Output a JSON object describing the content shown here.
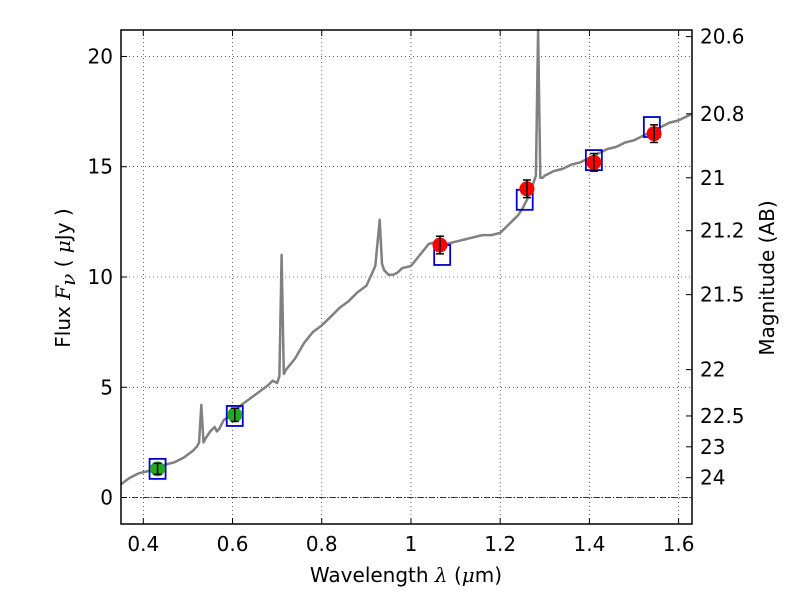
{
  "chart_data": {
    "type": "line",
    "xlabel": "Wavelength  λ (μm)",
    "xlabel_parts": {
      "main": "Wavelength  ",
      "lambda": "λ",
      "unit_open": " (",
      "mu": "μ",
      "unit_close": "m)"
    },
    "ylabel": "Flux  Fν  ( μJy )",
    "ylabel_parts": {
      "main": "Flux  ",
      "F": "F",
      "nu": "ν",
      "unit_open": "  ( ",
      "mu": "μ",
      "unit_close": "Jy )"
    },
    "y2label": "Magnitude (AB)",
    "xlim": [
      0.35,
      1.63
    ],
    "ylim": [
      -1.2,
      21.2
    ],
    "grid": true,
    "xticks": [
      0.4,
      0.6,
      0.8,
      1.0,
      1.2,
      1.4,
      1.6
    ],
    "xtick_labels": [
      "0.4",
      "0.6",
      "0.8",
      "1",
      "1.2",
      "1.4",
      "1.6"
    ],
    "yticks": [
      0,
      5,
      10,
      15,
      20
    ],
    "ytick_labels": [
      "0",
      "5",
      "10",
      "15",
      "20"
    ],
    "y2ticks": [
      {
        "label": "20.6",
        "flux": 20.9
      },
      {
        "label": "20.8",
        "flux": 17.4
      },
      {
        "label": "21",
        "flux": 14.5
      },
      {
        "label": "21.2",
        "flux": 12.1
      },
      {
        "label": "21.5",
        "flux": 9.2
      },
      {
        "label": "22",
        "flux": 5.8
      },
      {
        "label": "22.5",
        "flux": 3.7
      },
      {
        "label": "23",
        "flux": 2.3
      },
      {
        "label": "24",
        "flux": 0.9
      }
    ],
    "zero_line": 0,
    "series": [
      {
        "type": "line",
        "color": "#808080",
        "x": [
          0.35,
          0.37,
          0.39,
          0.41,
          0.43,
          0.45,
          0.47,
          0.49,
          0.51,
          0.52,
          0.525,
          0.53,
          0.535,
          0.54,
          0.55,
          0.56,
          0.565,
          0.57,
          0.58,
          0.6,
          0.62,
          0.64,
          0.66,
          0.68,
          0.69,
          0.7,
          0.705,
          0.71,
          0.715,
          0.72,
          0.74,
          0.76,
          0.78,
          0.8,
          0.82,
          0.84,
          0.86,
          0.88,
          0.9,
          0.92,
          0.93,
          0.935,
          0.94,
          0.95,
          0.96,
          0.97,
          0.98,
          1.0,
          1.02,
          1.04,
          1.06,
          1.08,
          1.1,
          1.12,
          1.14,
          1.16,
          1.18,
          1.2,
          1.22,
          1.24,
          1.25,
          1.26,
          1.27,
          1.28,
          1.285,
          1.29,
          1.295,
          1.3,
          1.32,
          1.34,
          1.36,
          1.38,
          1.4,
          1.42,
          1.44,
          1.46,
          1.48,
          1.5,
          1.52,
          1.54,
          1.56,
          1.58,
          1.6,
          1.62,
          1.63
        ],
        "y": [
          0.6,
          0.9,
          1.1,
          1.2,
          1.3,
          1.5,
          1.6,
          1.8,
          2.1,
          2.3,
          2.5,
          4.2,
          2.5,
          2.7,
          3.0,
          3.2,
          3.0,
          3.1,
          3.5,
          3.8,
          4.2,
          4.5,
          4.8,
          5.1,
          5.3,
          5.2,
          5.5,
          11.0,
          5.6,
          5.8,
          6.3,
          7.0,
          7.5,
          7.8,
          8.2,
          8.6,
          8.9,
          9.3,
          9.6,
          10.5,
          12.6,
          10.6,
          10.3,
          10.1,
          10.1,
          10.2,
          10.4,
          10.5,
          11.0,
          11.5,
          11.6,
          11.5,
          11.6,
          11.7,
          11.8,
          11.9,
          11.9,
          12.0,
          12.4,
          12.8,
          13.1,
          13.5,
          14.0,
          14.6,
          21.2,
          14.5,
          14.5,
          14.6,
          14.8,
          14.9,
          15.1,
          15.2,
          15.4,
          15.6,
          15.8,
          15.9,
          16.1,
          16.2,
          16.4,
          16.6,
          16.8,
          17.0,
          17.1,
          17.3,
          17.4
        ]
      },
      {
        "type": "scatter",
        "marker": "circle",
        "color": "#ff0000",
        "x": [
          1.065,
          1.26,
          1.41,
          1.545
        ],
        "y": [
          11.45,
          14.0,
          15.2,
          16.5
        ],
        "yerr": [
          0.4,
          0.4,
          0.4,
          0.4
        ]
      },
      {
        "type": "scatter",
        "marker": "circle",
        "color": "#22aa22",
        "x": [
          0.432,
          0.605
        ],
        "y": [
          1.3,
          3.75
        ],
        "yerr": [
          0.25,
          0.3
        ]
      },
      {
        "type": "scatter",
        "marker": "square-open",
        "color": "#0000cc",
        "x": [
          0.432,
          0.605,
          1.07,
          1.255,
          1.41,
          1.54
        ],
        "y": [
          1.3,
          3.7,
          11.0,
          13.5,
          15.3,
          16.8
        ]
      }
    ]
  }
}
